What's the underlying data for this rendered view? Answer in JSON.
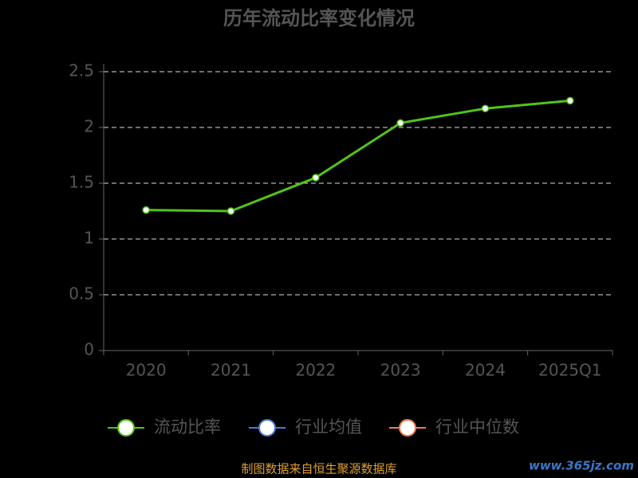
{
  "chart_data": {
    "type": "line",
    "title": "历年流动比率变化情况",
    "categories": [
      "2020",
      "2021",
      "2022",
      "2023",
      "2024",
      "2025Q1"
    ],
    "series": [
      {
        "name": "流动比率",
        "color": "#52c41a",
        "values": [
          1.26,
          1.25,
          1.55,
          2.04,
          2.17,
          2.24
        ]
      },
      {
        "name": "行业均值",
        "color": "#4a7bd8",
        "values": [
          null,
          null,
          null,
          null,
          null,
          null
        ]
      },
      {
        "name": "行业中位数",
        "color": "#f07c4f",
        "values": [
          null,
          null,
          null,
          null,
          null,
          null
        ]
      }
    ],
    "ylim": [
      0,
      2.5
    ],
    "yticks": [
      0,
      0.5,
      1,
      1.5,
      2,
      2.5
    ],
    "grid": true,
    "legend": "bottom",
    "source": "制图数据来自恒生聚源数据库",
    "watermark": "www.365jz.com"
  }
}
